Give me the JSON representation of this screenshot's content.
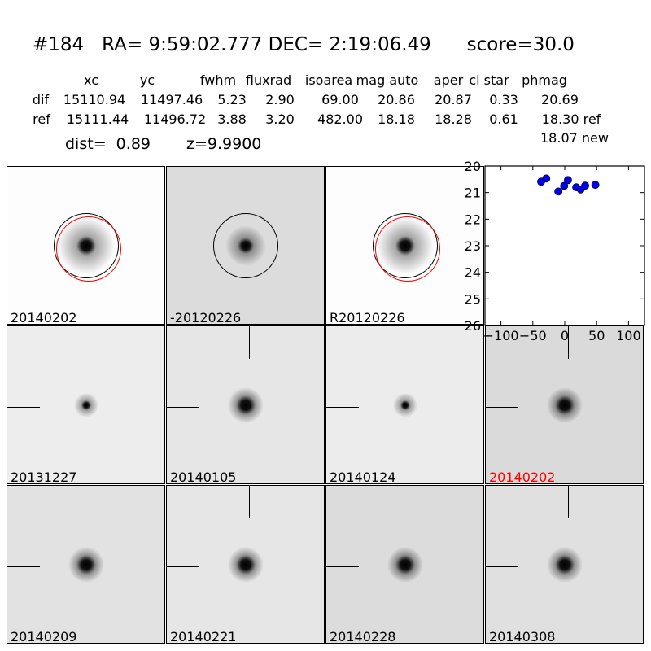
{
  "title": "#184   RA= 9:59:02.777 DEC= 2:19:06.49      score=30.0",
  "table": {
    "headers": [
      "xc",
      "yc",
      "fwhm",
      "fluxrad",
      "isoarea",
      "mag auto",
      "aper",
      "cl star",
      "phmag"
    ],
    "rows": [
      {
        "label": "dif",
        "values": [
          "15110.94",
          "11497.46",
          "5.23",
          "2.90",
          "69.00",
          "20.86",
          "20.87",
          "0.33",
          "20.69"
        ]
      },
      {
        "label": "ref",
        "values": [
          "15111.44",
          "11496.72",
          "3.88",
          "3.20",
          "482.00",
          "18.18",
          "18.28",
          "0.61",
          "18.30 ref"
        ]
      }
    ],
    "extra": "18.07 new"
  },
  "dist": "dist=  0.89",
  "z": "z=9.9900",
  "top_panels": [
    {
      "label": "20140202",
      "bg": "#fdfdfd",
      "circles": [
        "black",
        "red"
      ]
    },
    {
      "label": "-20120226",
      "bg": "#dcdcdc",
      "circles": [
        "black"
      ]
    },
    {
      "label": "R20120226",
      "bg": "#fdfdfd",
      "circles": [
        "black",
        "red"
      ]
    }
  ],
  "stamps": [
    {
      "label": "20131227",
      "color": "#000000",
      "bg": "#ededed"
    },
    {
      "label": "20140105",
      "color": "#000000",
      "bg": "#e6e6e6"
    },
    {
      "label": "20140124",
      "color": "#000000",
      "bg": "#ececec"
    },
    {
      "label": "20140202",
      "color": "#ff0000",
      "bg": "#dadada"
    },
    {
      "label": "20140209",
      "color": "#000000",
      "bg": "#e2e2e2"
    },
    {
      "label": "20140221",
      "color": "#000000",
      "bg": "#e6e6e6"
    },
    {
      "label": "20140228",
      "color": "#000000",
      "bg": "#dcdcdc"
    },
    {
      "label": "20140308",
      "color": "#000000",
      "bg": "#e0e0e0"
    }
  ],
  "chart_data": {
    "type": "scatter",
    "x": [
      -37,
      -29,
      -10,
      -1,
      5,
      18,
      25,
      32,
      48
    ],
    "y": [
      20.59,
      20.47,
      20.96,
      20.75,
      20.53,
      20.8,
      20.88,
      20.74,
      20.71
    ],
    "xlim": [
      -125,
      125
    ],
    "ylim": [
      26,
      20
    ],
    "y_inverted": true,
    "xticks": [
      "-100",
      "-50",
      "0",
      "50",
      "100"
    ],
    "yticks": [
      "20",
      "21",
      "22",
      "23",
      "24",
      "25",
      "26"
    ],
    "marker_color": "#0000ff",
    "grid": false
  }
}
